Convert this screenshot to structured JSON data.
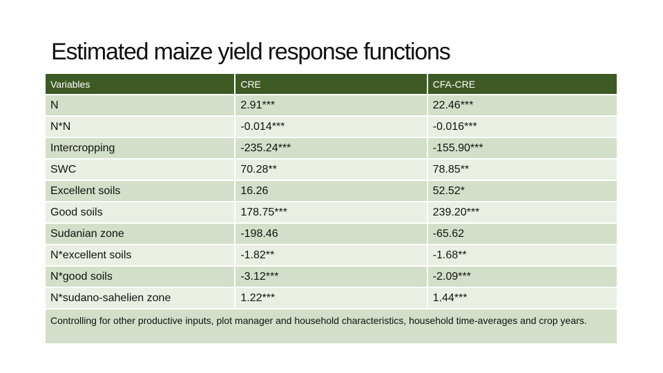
{
  "title": "Estimated maize yield response functions",
  "table": {
    "header": [
      "Variables",
      "CRE",
      "CFA-CRE"
    ],
    "rows": [
      [
        "N",
        "2.91***",
        "22.46***"
      ],
      [
        "N*N",
        "-0.014***",
        "-0.016***"
      ],
      [
        "Intercropping",
        "-235.24***",
        "-155.90***"
      ],
      [
        "SWC",
        "70.28**",
        "78.85**"
      ],
      [
        "Excellent soils",
        "16.26",
        "52.52*"
      ],
      [
        "Good soils",
        "178.75***",
        "239.20***"
      ],
      [
        "Sudanian zone",
        "-198.46",
        "-65.62"
      ],
      [
        "N*excellent soils",
        "-1.82**",
        "-1.68**"
      ],
      [
        "N*good soils",
        "-3.12***",
        "-2.09***"
      ],
      [
        "N*sudano-sahelien zone",
        "1.22***",
        "1.44***"
      ]
    ],
    "note": "Controlling for other productive inputs, plot manager and household characteristics, household time-averages and crop years."
  }
}
